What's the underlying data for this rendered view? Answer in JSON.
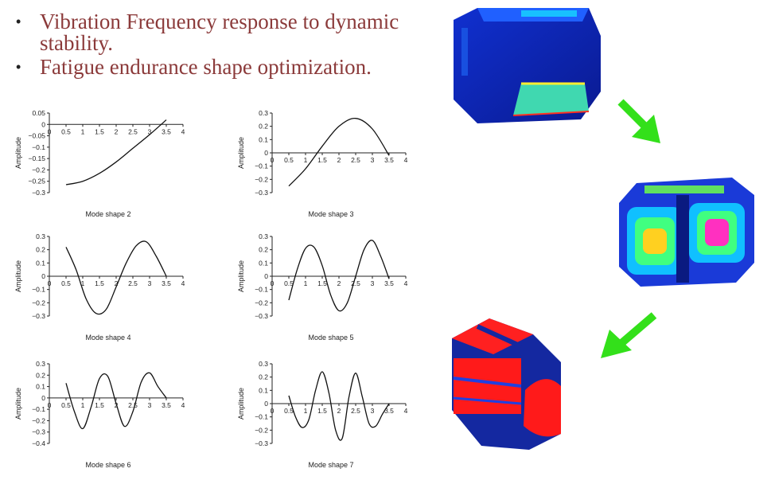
{
  "bullets": [
    "Vibration Frequency response to dynamic stability.",
    "Fatigue endurance shape optimization."
  ],
  "bullet_symbol": "•",
  "colors": {
    "bullet_text": "#8b3a3a",
    "arrow": "#33e01a",
    "stress_low": "#1428a0",
    "stress_high": "#ff1a1a"
  },
  "chart_data": [
    {
      "type": "line",
      "caption": "Mode shape 2",
      "ylabel": "Amplitude",
      "xlim": [
        0,
        4
      ],
      "ylim": [
        -0.3,
        0.05
      ],
      "xticks": [
        "0",
        "0.5",
        "1",
        "1.5",
        "2",
        "2.5",
        "3",
        "3.5",
        "4"
      ],
      "yticks": [
        "0.05",
        "0",
        "−0.05",
        "−0.1",
        "−0.15",
        "−0.2",
        "−0.25",
        "−0.3"
      ],
      "x": [
        0.5,
        1.0,
        1.5,
        2.0,
        2.5,
        3.0,
        3.5
      ],
      "y": [
        -0.265,
        -0.25,
        -0.215,
        -0.165,
        -0.105,
        -0.045,
        0.02
      ]
    },
    {
      "type": "line",
      "caption": "Mode shape 3",
      "ylabel": "Amplitude",
      "xlim": [
        0,
        4
      ],
      "ylim": [
        -0.3,
        0.3
      ],
      "xticks": [
        "0",
        "0.5",
        "1",
        "1.5",
        "2",
        "2.5",
        "3",
        "3.5",
        "4"
      ],
      "yticks": [
        "0.3",
        "0.2",
        "0.1",
        "0",
        "−0.1",
        "−0.2",
        "−0.3"
      ],
      "x": [
        0.5,
        1.0,
        1.5,
        2.0,
        2.5,
        3.0,
        3.5
      ],
      "y": [
        -0.25,
        -0.12,
        0.05,
        0.2,
        0.26,
        0.18,
        -0.02
      ]
    },
    {
      "type": "line",
      "caption": "Mode shape 4",
      "ylabel": "Amplitude",
      "xlim": [
        0,
        4
      ],
      "ylim": [
        -0.3,
        0.3
      ],
      "xticks": [
        "0",
        "0.5",
        "1",
        "1.5",
        "2",
        "2.5",
        "3",
        "3.5",
        "4"
      ],
      "yticks": [
        "0.3",
        "0.2",
        "0.1",
        "0",
        "−0.1",
        "−0.2",
        "−0.3"
      ],
      "x": [
        0.5,
        0.8,
        1.1,
        1.4,
        1.7,
        2.0,
        2.3,
        2.6,
        2.9,
        3.2,
        3.5
      ],
      "y": [
        0.22,
        0.05,
        -0.17,
        -0.28,
        -0.25,
        -0.08,
        0.1,
        0.23,
        0.26,
        0.15,
        0.0
      ]
    },
    {
      "type": "line",
      "caption": "Mode shape 5",
      "ylabel": "Amplitude",
      "xlim": [
        0,
        4
      ],
      "ylim": [
        -0.3,
        0.3
      ],
      "xticks": [
        "0",
        "0.5",
        "1",
        "1.5",
        "2",
        "2.5",
        "3",
        "3.5",
        "4"
      ],
      "yticks": [
        "0.3",
        "0.2",
        "0.1",
        "0",
        "−0.1",
        "−0.2",
        "−0.3"
      ],
      "x": [
        0.5,
        0.75,
        1.0,
        1.25,
        1.5,
        1.75,
        2.0,
        2.25,
        2.5,
        2.75,
        3.0,
        3.25,
        3.5
      ],
      "y": [
        -0.18,
        0.05,
        0.21,
        0.22,
        0.08,
        -0.14,
        -0.26,
        -0.2,
        0.0,
        0.2,
        0.27,
        0.15,
        -0.02
      ]
    },
    {
      "type": "line",
      "caption": "Mode shape 6",
      "ylabel": "Amplitude",
      "xlim": [
        0,
        4
      ],
      "ylim": [
        -0.4,
        0.3
      ],
      "xticks": [
        "0",
        "0.5",
        "1",
        "1.5",
        "2",
        "2.5",
        "3",
        "3.5",
        "4"
      ],
      "yticks": [
        "0.3",
        "0.2",
        "0.1",
        "0",
        "−0.1",
        "−0.2",
        "−0.3",
        "−0.4"
      ],
      "x": [
        0.5,
        0.75,
        1.0,
        1.25,
        1.5,
        1.75,
        2.0,
        2.25,
        2.5,
        2.75,
        3.0,
        3.25,
        3.5
      ],
      "y": [
        0.13,
        -0.12,
        -0.27,
        -0.08,
        0.17,
        0.19,
        -0.05,
        -0.25,
        -0.12,
        0.14,
        0.22,
        0.1,
        0.0
      ]
    },
    {
      "type": "line",
      "caption": "Mode shape  7",
      "ylabel": "Amplitude",
      "xlim": [
        0,
        4
      ],
      "ylim": [
        -0.3,
        0.3
      ],
      "xticks": [
        "0",
        "0.5",
        "1",
        "1.5",
        "2",
        "2.5",
        "3",
        "3.5",
        "4"
      ],
      "yticks": [
        "0.3",
        "0.2",
        "0.1",
        "0",
        "−0.1",
        "−0.2",
        "−0.3"
      ],
      "x": [
        0.5,
        0.7,
        0.9,
        1.1,
        1.3,
        1.5,
        1.7,
        1.9,
        2.1,
        2.3,
        2.5,
        2.7,
        2.9,
        3.1,
        3.3,
        3.5
      ],
      "y": [
        0.06,
        -0.1,
        -0.18,
        -0.12,
        0.1,
        0.24,
        0.08,
        -0.2,
        -0.26,
        0.05,
        0.23,
        0.05,
        -0.15,
        -0.17,
        -0.08,
        0.0
      ]
    }
  ]
}
